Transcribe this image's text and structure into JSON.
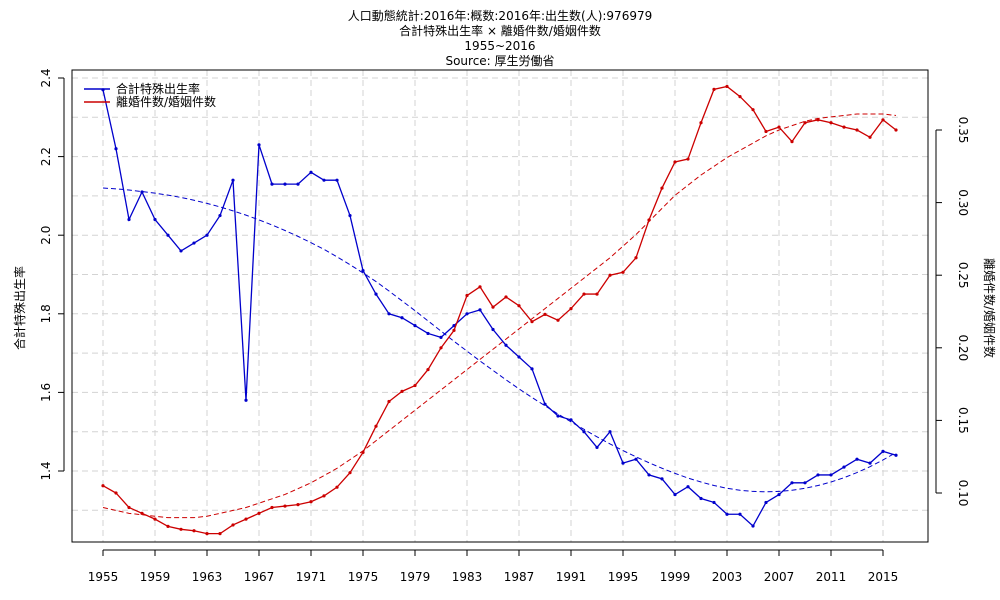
{
  "chart_data": {
    "type": "line",
    "title": [
      "人口動態統計:2016年:概数:2016年:出生数(人):976979",
      "合計特殊出生率 × 離婚件数/婚姻件数",
      "1955~2016",
      "Source: 厚生労働省"
    ],
    "ylabel_left": "合計特殊出生率",
    "ylabel_right": "離婚件数/婚姻件数",
    "xlim": [
      1955,
      2016
    ],
    "x_tick_labels": [
      1955,
      1959,
      1963,
      1967,
      1971,
      1975,
      1979,
      1983,
      1987,
      1991,
      1995,
      1999,
      2003,
      2007,
      2011,
      2015
    ],
    "ylim_left": [
      1.22,
      2.4
    ],
    "ylim_right": [
      0.06,
      0.385
    ],
    "y_ticks_left": [
      "1.4",
      "1.6",
      "1.8",
      "2.0",
      "2.2",
      "2.4"
    ],
    "y_ticks_right": [
      "0.10",
      "0.15",
      "0.20",
      "0.25",
      "0.30",
      "0.35"
    ],
    "grid": true,
    "legend_position": "top-left",
    "x": [
      1955,
      1956,
      1957,
      1958,
      1959,
      1960,
      1961,
      1962,
      1963,
      1964,
      1965,
      1966,
      1967,
      1968,
      1969,
      1970,
      1971,
      1972,
      1973,
      1974,
      1975,
      1976,
      1977,
      1978,
      1979,
      1980,
      1981,
      1982,
      1983,
      1984,
      1985,
      1986,
      1987,
      1988,
      1989,
      1990,
      1991,
      1992,
      1993,
      1994,
      1995,
      1996,
      1997,
      1998,
      1999,
      2000,
      2001,
      2002,
      2003,
      2004,
      2005,
      2006,
      2007,
      2008,
      2009,
      2010,
      2011,
      2012,
      2013,
      2014,
      2015,
      2016
    ],
    "series": [
      {
        "name": "合計特殊出生率",
        "axis": "left",
        "color": "#0000cc",
        "values": [
          2.37,
          2.22,
          2.04,
          2.11,
          2.04,
          2.0,
          1.96,
          1.98,
          2.0,
          2.05,
          2.14,
          1.58,
          2.23,
          2.13,
          2.13,
          2.13,
          2.16,
          2.14,
          2.14,
          2.05,
          1.91,
          1.85,
          1.8,
          1.79,
          1.77,
          1.75,
          1.74,
          1.77,
          1.8,
          1.81,
          1.76,
          1.72,
          1.69,
          1.66,
          1.57,
          1.54,
          1.53,
          1.5,
          1.46,
          1.5,
          1.42,
          1.43,
          1.39,
          1.38,
          1.34,
          1.36,
          1.33,
          1.32,
          1.29,
          1.29,
          1.26,
          1.32,
          1.34,
          1.37,
          1.37,
          1.39,
          1.39,
          1.41,
          1.43,
          1.42,
          1.45,
          1.44
        ],
        "trend": [
          2.12,
          2.118,
          2.115,
          2.111,
          2.107,
          2.102,
          2.096,
          2.089,
          2.081,
          2.072,
          2.062,
          2.051,
          2.039,
          2.026,
          2.012,
          1.997,
          1.981,
          1.964,
          1.945,
          1.925,
          1.904,
          1.882,
          1.858,
          1.833,
          1.808,
          1.782,
          1.756,
          1.73,
          1.705,
          1.68,
          1.656,
          1.632,
          1.609,
          1.587,
          1.566,
          1.545,
          1.525,
          1.506,
          1.487,
          1.469,
          1.452,
          1.436,
          1.421,
          1.407,
          1.394,
          1.382,
          1.372,
          1.363,
          1.356,
          1.351,
          1.348,
          1.347,
          1.348,
          1.351,
          1.356,
          1.363,
          1.372,
          1.383,
          1.396,
          1.411,
          1.428,
          1.447
        ]
      },
      {
        "name": "離婚件数/婚姻件数",
        "axis": "right",
        "color": "#cc0000",
        "values": [
          0.105,
          0.1,
          0.09,
          0.086,
          0.082,
          0.077,
          0.075,
          0.074,
          0.072,
          0.072,
          0.078,
          0.082,
          0.086,
          0.09,
          0.091,
          0.092,
          0.094,
          0.098,
          0.104,
          0.114,
          0.128,
          0.146,
          0.163,
          0.17,
          0.174,
          0.185,
          0.2,
          0.212,
          0.236,
          0.242,
          0.228,
          0.235,
          0.229,
          0.218,
          0.223,
          0.219,
          0.227,
          0.237,
          0.237,
          0.25,
          0.252,
          0.262,
          0.288,
          0.31,
          0.328,
          0.33,
          0.355,
          0.378,
          0.38,
          0.373,
          0.364,
          0.349,
          0.352,
          0.342,
          0.355,
          0.357,
          0.355,
          0.352,
          0.35,
          0.345,
          0.357,
          0.35
        ],
        "trend": [
          0.09,
          0.088,
          0.086,
          0.085,
          0.084,
          0.083,
          0.083,
          0.083,
          0.084,
          0.086,
          0.088,
          0.09,
          0.093,
          0.096,
          0.099,
          0.103,
          0.107,
          0.112,
          0.117,
          0.123,
          0.129,
          0.136,
          0.143,
          0.15,
          0.157,
          0.164,
          0.171,
          0.178,
          0.185,
          0.192,
          0.199,
          0.206,
          0.213,
          0.22,
          0.227,
          0.234,
          0.241,
          0.248,
          0.255,
          0.262,
          0.27,
          0.278,
          0.287,
          0.296,
          0.305,
          0.312,
          0.319,
          0.325,
          0.331,
          0.336,
          0.341,
          0.346,
          0.35,
          0.353,
          0.356,
          0.358,
          0.359,
          0.36,
          0.361,
          0.361,
          0.361,
          0.36
        ]
      }
    ]
  }
}
